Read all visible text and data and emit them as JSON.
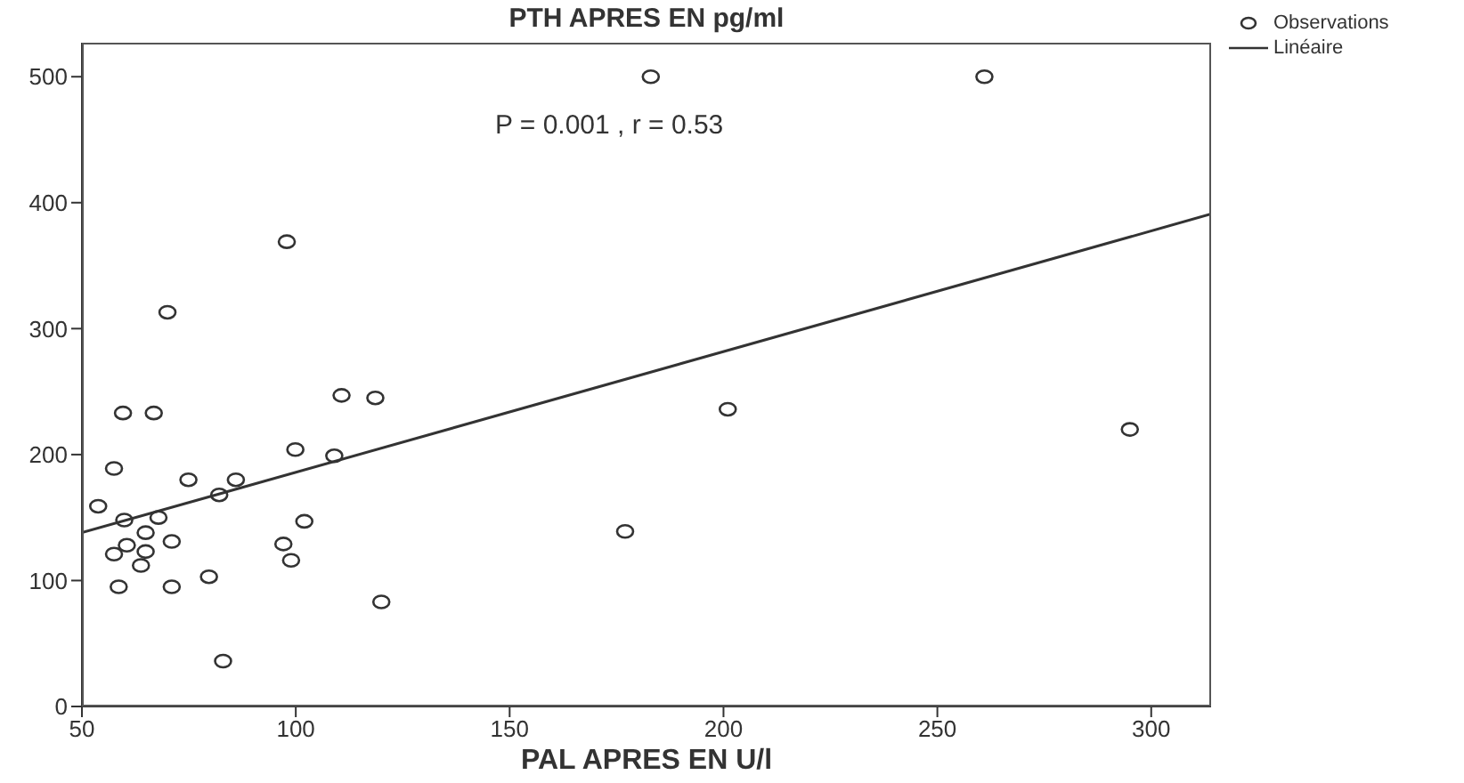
{
  "chart_data": {
    "type": "scatter",
    "title": "PTH APRES EN pg/ml",
    "xlabel": "PAL APRES EN U/l",
    "annotations": [
      "P = 0.001 , r = 0.53"
    ],
    "xlim": [
      50,
      314
    ],
    "xticks": [
      50,
      100,
      150,
      200,
      250,
      300
    ],
    "ylim": [
      0,
      527
    ],
    "yticks": [
      0,
      100,
      200,
      300,
      400,
      500
    ],
    "legend": "top right",
    "marker": "circle",
    "series": [
      {
        "name": "Observations",
        "type": "scatter",
        "color": "#333333",
        "x": [
          110.7,
          118.6,
          59.6,
          66.8,
          99.9,
          109,
          57.5,
          74.9,
          86,
          82.1,
          53.8,
          59.9,
          67.9,
          102,
          64.9,
          60.5,
          71,
          57.5,
          64.9,
          97.1,
          98.9,
          63.8,
          79.7,
          58.6,
          71,
          120,
          83,
          97.9,
          70,
          183,
          261,
          201,
          295,
          177
        ],
        "values": [
          247,
          245,
          233,
          233,
          204,
          199,
          189,
          180,
          180,
          168,
          159,
          148,
          150,
          147,
          138,
          128,
          131,
          121,
          123,
          129,
          116,
          112,
          103,
          95,
          95,
          83,
          36,
          369,
          313,
          500,
          500,
          236,
          220,
          139
        ]
      },
      {
        "name": "Linéaire",
        "type": "line",
        "color": "#333333",
        "marker": "none",
        "x": [
          50,
          314
        ],
        "values": [
          138,
          391
        ]
      }
    ]
  }
}
